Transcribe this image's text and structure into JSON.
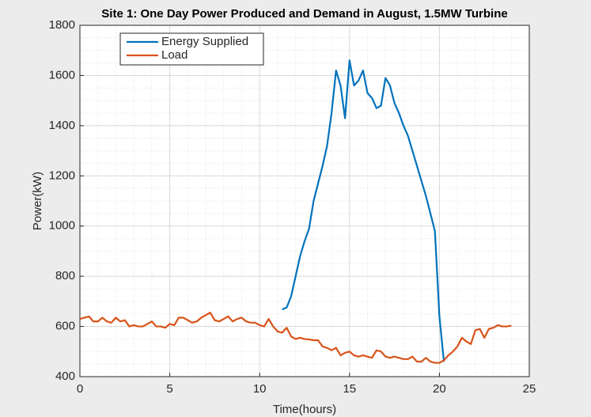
{
  "chart_data": {
    "type": "line",
    "title": "Site 1: One Day Power Produced and Demand in August, 1.5MW Turbine",
    "xlabel": "Time(hours)",
    "ylabel": "Power(kW)",
    "xlim": [
      0,
      25
    ],
    "xticks": [
      0,
      5,
      10,
      15,
      20,
      25
    ],
    "ylim": [
      400,
      1800
    ],
    "yticks": [
      400,
      600,
      800,
      1000,
      1200,
      1400,
      1600,
      1800
    ],
    "grid": true,
    "minor_grid": true,
    "legend": "upper left",
    "series": [
      {
        "name": "Energy Supplied",
        "color": "#0072bd",
        "x": [
          11.25,
          11.5,
          11.75,
          12,
          12.25,
          12.5,
          12.75,
          13,
          13.25,
          13.5,
          13.75,
          14,
          14.25,
          14.5,
          14.75,
          15,
          15.25,
          15.5,
          15.75,
          16,
          16.25,
          16.5,
          16.75,
          17,
          17.25,
          17.5,
          17.75,
          18,
          18.25,
          18.5,
          18.75,
          19,
          19.25,
          19.5,
          19.75,
          20,
          20.25
        ],
        "values": [
          668,
          675,
          720,
          800,
          880,
          940,
          990,
          1100,
          1170,
          1240,
          1320,
          1450,
          1620,
          1560,
          1430,
          1660,
          1560,
          1580,
          1620,
          1530,
          1510,
          1470,
          1480,
          1590,
          1560,
          1490,
          1450,
          1400,
          1360,
          1300,
          1240,
          1180,
          1120,
          1050,
          980,
          640,
          460
        ]
      },
      {
        "name": "Load",
        "color": "#d95319",
        "x": [
          0,
          0.25,
          0.5,
          0.75,
          1,
          1.25,
          1.5,
          1.75,
          2,
          2.25,
          2.5,
          2.75,
          3,
          3.25,
          3.5,
          3.75,
          4,
          4.25,
          4.5,
          4.75,
          5,
          5.25,
          5.5,
          5.75,
          6,
          6.25,
          6.5,
          6.75,
          7,
          7.25,
          7.5,
          7.75,
          8,
          8.25,
          8.5,
          8.75,
          9,
          9.25,
          9.5,
          9.75,
          10,
          10.25,
          10.5,
          10.75,
          11,
          11.25,
          11.5,
          11.75,
          12,
          12.25,
          12.5,
          12.75,
          13,
          13.25,
          13.5,
          13.75,
          14,
          14.25,
          14.5,
          14.75,
          15,
          15.25,
          15.5,
          15.75,
          16,
          16.25,
          16.5,
          16.75,
          17,
          17.25,
          17.5,
          17.75,
          18,
          18.25,
          18.5,
          18.75,
          19,
          19.25,
          19.5,
          19.75,
          20,
          20.25,
          20.5,
          20.75,
          21,
          21.25,
          21.5,
          21.75,
          22,
          22.25,
          22.5,
          22.75,
          23,
          23.25,
          23.5,
          23.75,
          24
        ],
        "values": [
          630,
          635,
          640,
          620,
          620,
          635,
          620,
          615,
          635,
          620,
          625,
          600,
          605,
          600,
          600,
          610,
          620,
          600,
          600,
          595,
          610,
          605,
          635,
          635,
          625,
          615,
          620,
          635,
          645,
          655,
          625,
          620,
          630,
          640,
          620,
          630,
          635,
          620,
          615,
          615,
          605,
          600,
          630,
          600,
          580,
          575,
          595,
          560,
          550,
          555,
          550,
          548,
          545,
          545,
          520,
          515,
          505,
          515,
          485,
          495,
          500,
          485,
          480,
          485,
          480,
          475,
          505,
          500,
          480,
          475,
          480,
          475,
          470,
          470,
          480,
          460,
          460,
          475,
          460,
          455,
          455,
          465,
          485,
          500,
          520,
          555,
          540,
          530,
          585,
          590,
          555,
          590,
          595,
          605,
          600,
          600,
          603
        ]
      }
    ]
  }
}
